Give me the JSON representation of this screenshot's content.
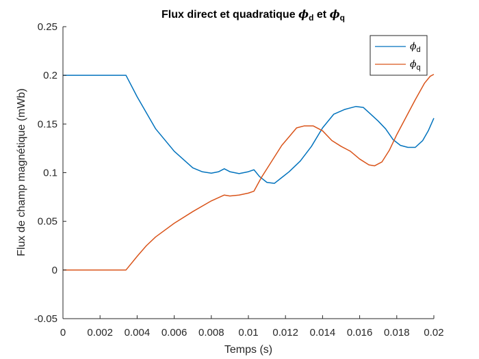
{
  "chart_data": {
    "type": "line",
    "title": {
      "prefix": "Flux direct et quadratique ",
      "sym1": "ϕ",
      "sub1": "d",
      "conj": " et ",
      "sym2": "ϕ",
      "sub2": "q"
    },
    "xlabel": "Temps (s)",
    "ylabel": "Flux de champ magnétique (mWb)",
    "xlim": [
      0,
      0.02
    ],
    "ylim": [
      -0.05,
      0.25
    ],
    "xticks": [
      0,
      0.002,
      0.004,
      0.006,
      0.008,
      0.01,
      0.012,
      0.014,
      0.016,
      0.018,
      0.02
    ],
    "xtick_labels": [
      "0",
      "0.002",
      "0.004",
      "0.006",
      "0.008",
      "0.01",
      "0.012",
      "0.014",
      "0.016",
      "0.018",
      "0.02"
    ],
    "yticks": [
      -0.05,
      0,
      0.05,
      0.1,
      0.15,
      0.2,
      0.25
    ],
    "ytick_labels": [
      "-0.05",
      "0",
      "0.05",
      "0.1",
      "0.15",
      "0.2",
      "0.25"
    ],
    "grid": false,
    "legend_position": "top-right",
    "series": [
      {
        "name": "d",
        "symbol": "ϕ",
        "color": "#0072BD",
        "x": [
          0,
          0.0034,
          0.004,
          0.005,
          0.006,
          0.007,
          0.0075,
          0.008,
          0.0084,
          0.0087,
          0.009,
          0.0095,
          0.01,
          0.0103,
          0.0106,
          0.011,
          0.0114,
          0.0118,
          0.0122,
          0.0128,
          0.0134,
          0.014,
          0.0146,
          0.0152,
          0.0158,
          0.0162,
          0.0166,
          0.017,
          0.0174,
          0.0178,
          0.0182,
          0.0186,
          0.019,
          0.0194,
          0.0197,
          0.02
        ],
        "y": [
          0.2,
          0.2,
          0.178,
          0.145,
          0.122,
          0.105,
          0.101,
          0.0995,
          0.101,
          0.104,
          0.101,
          0.099,
          0.101,
          0.103,
          0.096,
          0.09,
          0.089,
          0.095,
          0.101,
          0.112,
          0.127,
          0.146,
          0.16,
          0.165,
          0.168,
          0.167,
          0.16,
          0.153,
          0.145,
          0.134,
          0.128,
          0.126,
          0.126,
          0.133,
          0.143,
          0.156
        ]
      },
      {
        "name": "q",
        "symbol": "ϕ",
        "color": "#D95319",
        "x": [
          0,
          0.0034,
          0.004,
          0.0045,
          0.005,
          0.006,
          0.007,
          0.008,
          0.0087,
          0.009,
          0.0095,
          0.01,
          0.0103,
          0.0107,
          0.0112,
          0.0118,
          0.0122,
          0.0126,
          0.013,
          0.0135,
          0.014,
          0.0145,
          0.015,
          0.0155,
          0.016,
          0.0165,
          0.0168,
          0.0172,
          0.0176,
          0.018,
          0.0185,
          0.019,
          0.0195,
          0.0198,
          0.02
        ],
        "y": [
          0,
          0,
          0.014,
          0.025,
          0.034,
          0.048,
          0.06,
          0.071,
          0.077,
          0.076,
          0.077,
          0.079,
          0.081,
          0.095,
          0.11,
          0.128,
          0.137,
          0.146,
          0.148,
          0.148,
          0.143,
          0.133,
          0.127,
          0.122,
          0.114,
          0.108,
          0.107,
          0.111,
          0.123,
          0.139,
          0.157,
          0.175,
          0.192,
          0.199,
          0.201
        ]
      }
    ]
  }
}
